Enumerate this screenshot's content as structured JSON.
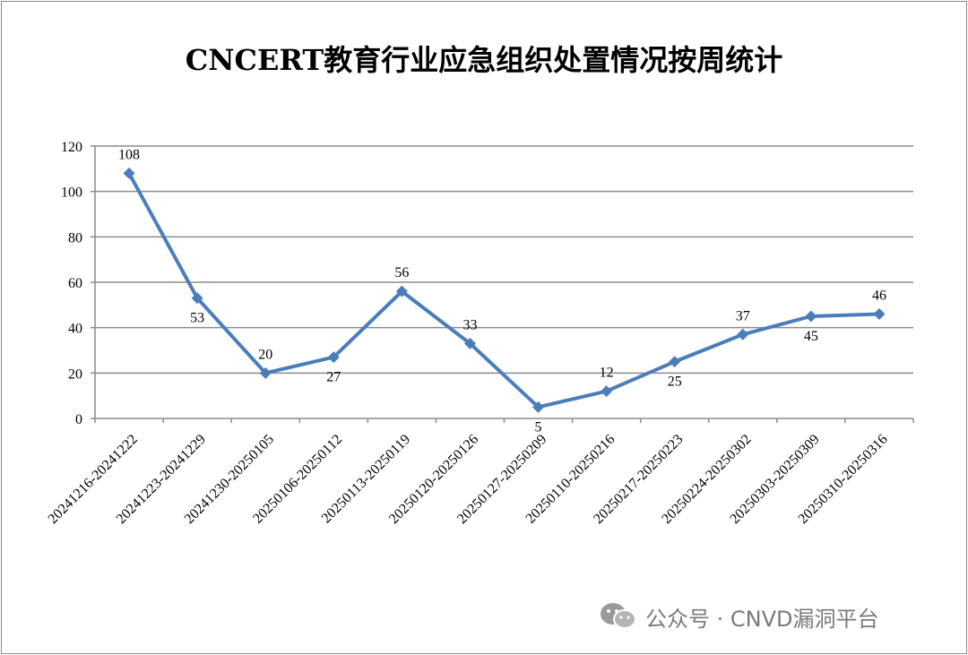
{
  "chart_data": {
    "type": "line",
    "title": "CNCERT教育行业应急组织处置情况按周统计",
    "categories": [
      "20241216-20241222",
      "20241223-20241229",
      "20241230-20250105",
      "20250106-20250112",
      "20250113-20250119",
      "20250120-20250126",
      "20250127-20250209",
      "20250110-20250216",
      "20250217-20250223",
      "20250224-20250302",
      "20250303-20250309",
      "20250310-20250316"
    ],
    "series": [
      {
        "values": [
          108,
          53,
          20,
          27,
          56,
          33,
          5,
          12,
          25,
          37,
          45,
          46
        ]
      }
    ],
    "label_positions": [
      "above",
      "below",
      "above",
      "below",
      "above",
      "above",
      "below",
      "above",
      "below",
      "above",
      "below",
      "above"
    ],
    "ylim": [
      0,
      120
    ],
    "yticks": [
      0,
      20,
      40,
      60,
      80,
      100,
      120
    ],
    "grid": true,
    "legend": "none",
    "line_color": "#4a7ebb"
  },
  "watermark": {
    "text": "公众号 · CNVD漏洞平台",
    "icon": "wechat-icon"
  }
}
